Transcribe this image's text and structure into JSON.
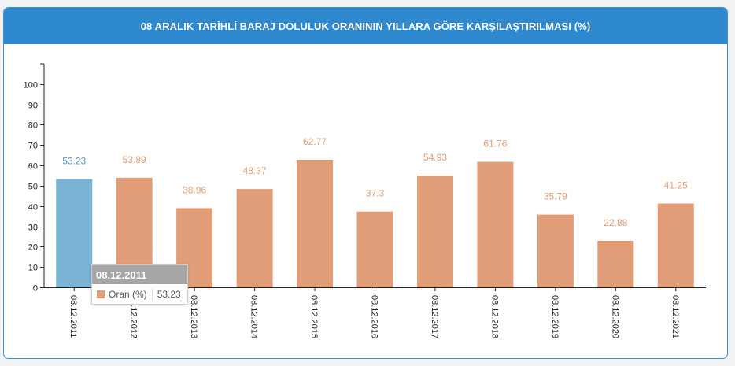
{
  "header": {
    "title": "08 ARALIK TARİHLİ BARAJ DOLULUK ORANININ YILLARA GÖRE KARŞILAŞTIRILMASI (%)"
  },
  "colors": {
    "bar": "#e09d77",
    "bar_highlight": "#7ab3d3",
    "label": "#e09d77",
    "label_highlight": "#5b9bc2",
    "header": "#2f89cf"
  },
  "tooltip": {
    "date": "08.12.2011",
    "series": "Oran (%)",
    "value": "53.23"
  },
  "chart_data": {
    "type": "bar",
    "categories": [
      "08.12.2011",
      "08.12.2012",
      "08.12.2013",
      "08.12.2014",
      "08.12.2015",
      "08.12.2016",
      "08.12.2017",
      "08.12.2018",
      "08.12.2019",
      "08.12.2020",
      "08.12.2021"
    ],
    "values": [
      53.23,
      53.89,
      38.96,
      48.37,
      62.77,
      37.3,
      54.93,
      61.76,
      35.79,
      22.88,
      41.25
    ],
    "value_labels": [
      "53.23",
      "53.89",
      "38.96",
      "48.37",
      "62.77",
      "37.3",
      "54.93",
      "61.76",
      "35.79",
      "22.88",
      "41.25"
    ],
    "series": [
      {
        "name": "Oran (%)"
      }
    ],
    "highlight_index": 0,
    "yticks": [
      0,
      10,
      20,
      30,
      40,
      50,
      60,
      70,
      80,
      90,
      100
    ],
    "ylim": [
      0,
      110
    ],
    "grid": false
  }
}
